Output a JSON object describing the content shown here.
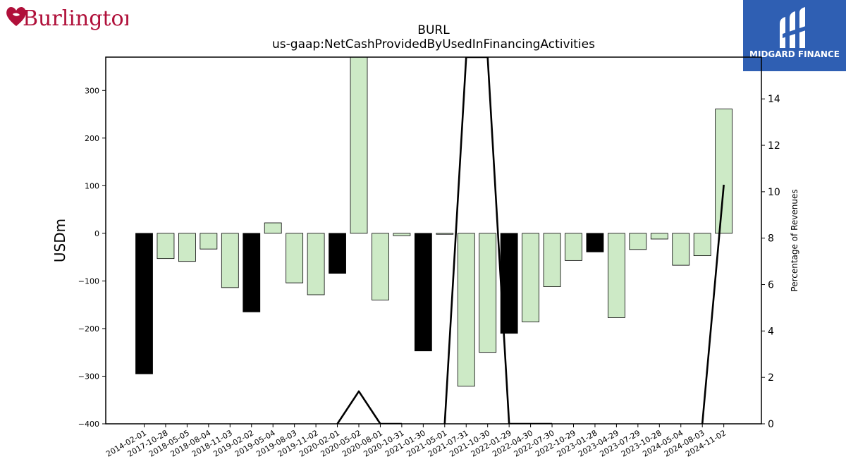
{
  "header": {
    "company_logo_text": "Burlington",
    "company_logo_icon": "heart-icon",
    "brand_name": "MIDGARD FINANCE",
    "brand_color": "#2f5fb3"
  },
  "chart_data": {
    "type": "bar",
    "title": "BURL",
    "subtitle": "us-gaap:NetCashProvidedByUsedInFinancingActivities",
    "ylabel": "USDm",
    "y2label": "Percentage of Revenues",
    "ylim": [
      -400,
      370
    ],
    "y2lim": [
      0,
      15.8
    ],
    "yticks": [
      -400,
      -300,
      -200,
      -100,
      0,
      100,
      200,
      300
    ],
    "y2ticks": [
      0,
      2,
      4,
      6,
      8,
      10,
      12,
      14
    ],
    "categories": [
      "2014-02-01",
      "2017-10-28",
      "2018-05-05",
      "2018-08-04",
      "2018-11-03",
      "2019-02-02",
      "2019-05-04",
      "2019-08-03",
      "2019-11-02",
      "2020-02-01",
      "2020-05-02",
      "2020-08-01",
      "2020-10-31",
      "2021-01-30",
      "2021-05-01",
      "2021-07-31",
      "2021-10-30",
      "2022-01-29",
      "2022-04-30",
      "2022-07-30",
      "2022-10-29",
      "2023-01-28",
      "2023-04-29",
      "2023-07-29",
      "2023-10-28",
      "2024-05-04",
      "2024-08-03",
      "2024-11-02"
    ],
    "series": [
      {
        "values": [
          -295,
          -53,
          -59,
          -33,
          -114,
          -165,
          22,
          -104,
          -129,
          -84,
          372,
          -140,
          -5,
          -247,
          -2,
          -321,
          -250,
          -210,
          -186,
          -112,
          -57,
          -39,
          -177,
          -34,
          -12,
          -67,
          -47,
          261
        ],
        "annual": [
          true,
          false,
          false,
          false,
          false,
          true,
          false,
          false,
          false,
          true,
          false,
          false,
          false,
          true,
          false,
          false,
          false,
          true,
          false,
          false,
          false,
          true,
          false,
          false,
          false,
          false,
          false,
          false
        ]
      },
      {
        "type": "line",
        "values": [
          null,
          null,
          null,
          null,
          null,
          null,
          null,
          null,
          null,
          0,
          1.4,
          0,
          0,
          null,
          0,
          15.8,
          15.8,
          0,
          0,
          0,
          null,
          null,
          null,
          null,
          null,
          null,
          0,
          10.3
        ]
      }
    ],
    "colors": {
      "annual_bar": "#000000",
      "quarter_bar": "#cdeac6",
      "line": "#000000"
    }
  }
}
